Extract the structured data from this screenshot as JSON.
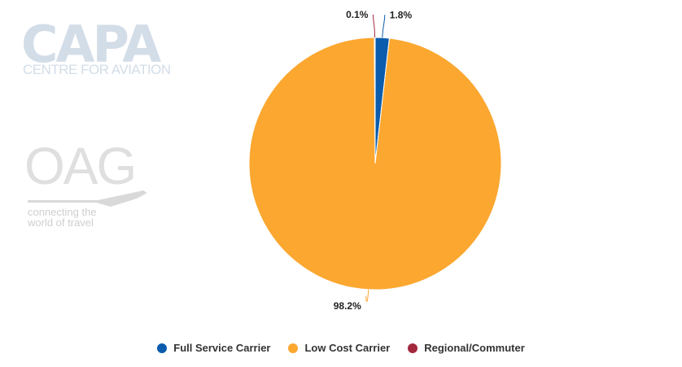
{
  "watermark": {
    "capa_title": "CAPA",
    "capa_subtitle": "CENTRE FOR AVIATION",
    "oag_title": "OAG",
    "oag_tagline_1": "connecting the",
    "oag_tagline_2": "world of travel"
  },
  "chart_data": {
    "type": "pie",
    "title": "",
    "categories": [
      "Full Service Carrier",
      "Low Cost Carrier",
      "Regional/Commuter"
    ],
    "values": [
      1.8,
      98.2,
      0.1
    ],
    "labels": [
      "1.8%",
      "98.2%",
      "0.1%"
    ],
    "colors": [
      "#0b5cad",
      "#fba730",
      "#a3283d"
    ],
    "legend": "bottom-center"
  }
}
